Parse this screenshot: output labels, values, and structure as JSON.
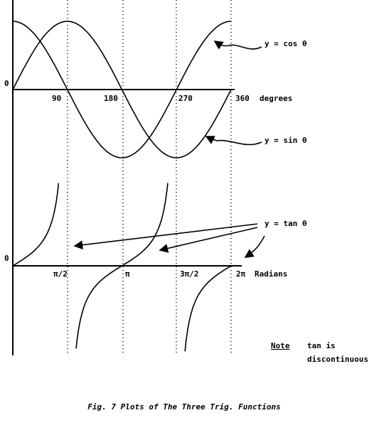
{
  "top_graph": {
    "origin_label": "0",
    "x_ticks": [
      "90",
      "180",
      "270",
      "360"
    ],
    "x_unit": "degrees",
    "curve_labels": [
      "y = cos θ",
      "y = sin θ"
    ]
  },
  "bottom_graph": {
    "origin_label": "0",
    "x_ticks": [
      "π/2",
      "π",
      "3π/2",
      "2π"
    ],
    "x_unit": "Radians",
    "curve_label": "y = tan θ"
  },
  "note": {
    "heading": "Note",
    "lines": [
      "tan is",
      "discontinuous"
    ]
  },
  "caption": "Fig. 7  Plots of The Three Trig. Functions"
}
